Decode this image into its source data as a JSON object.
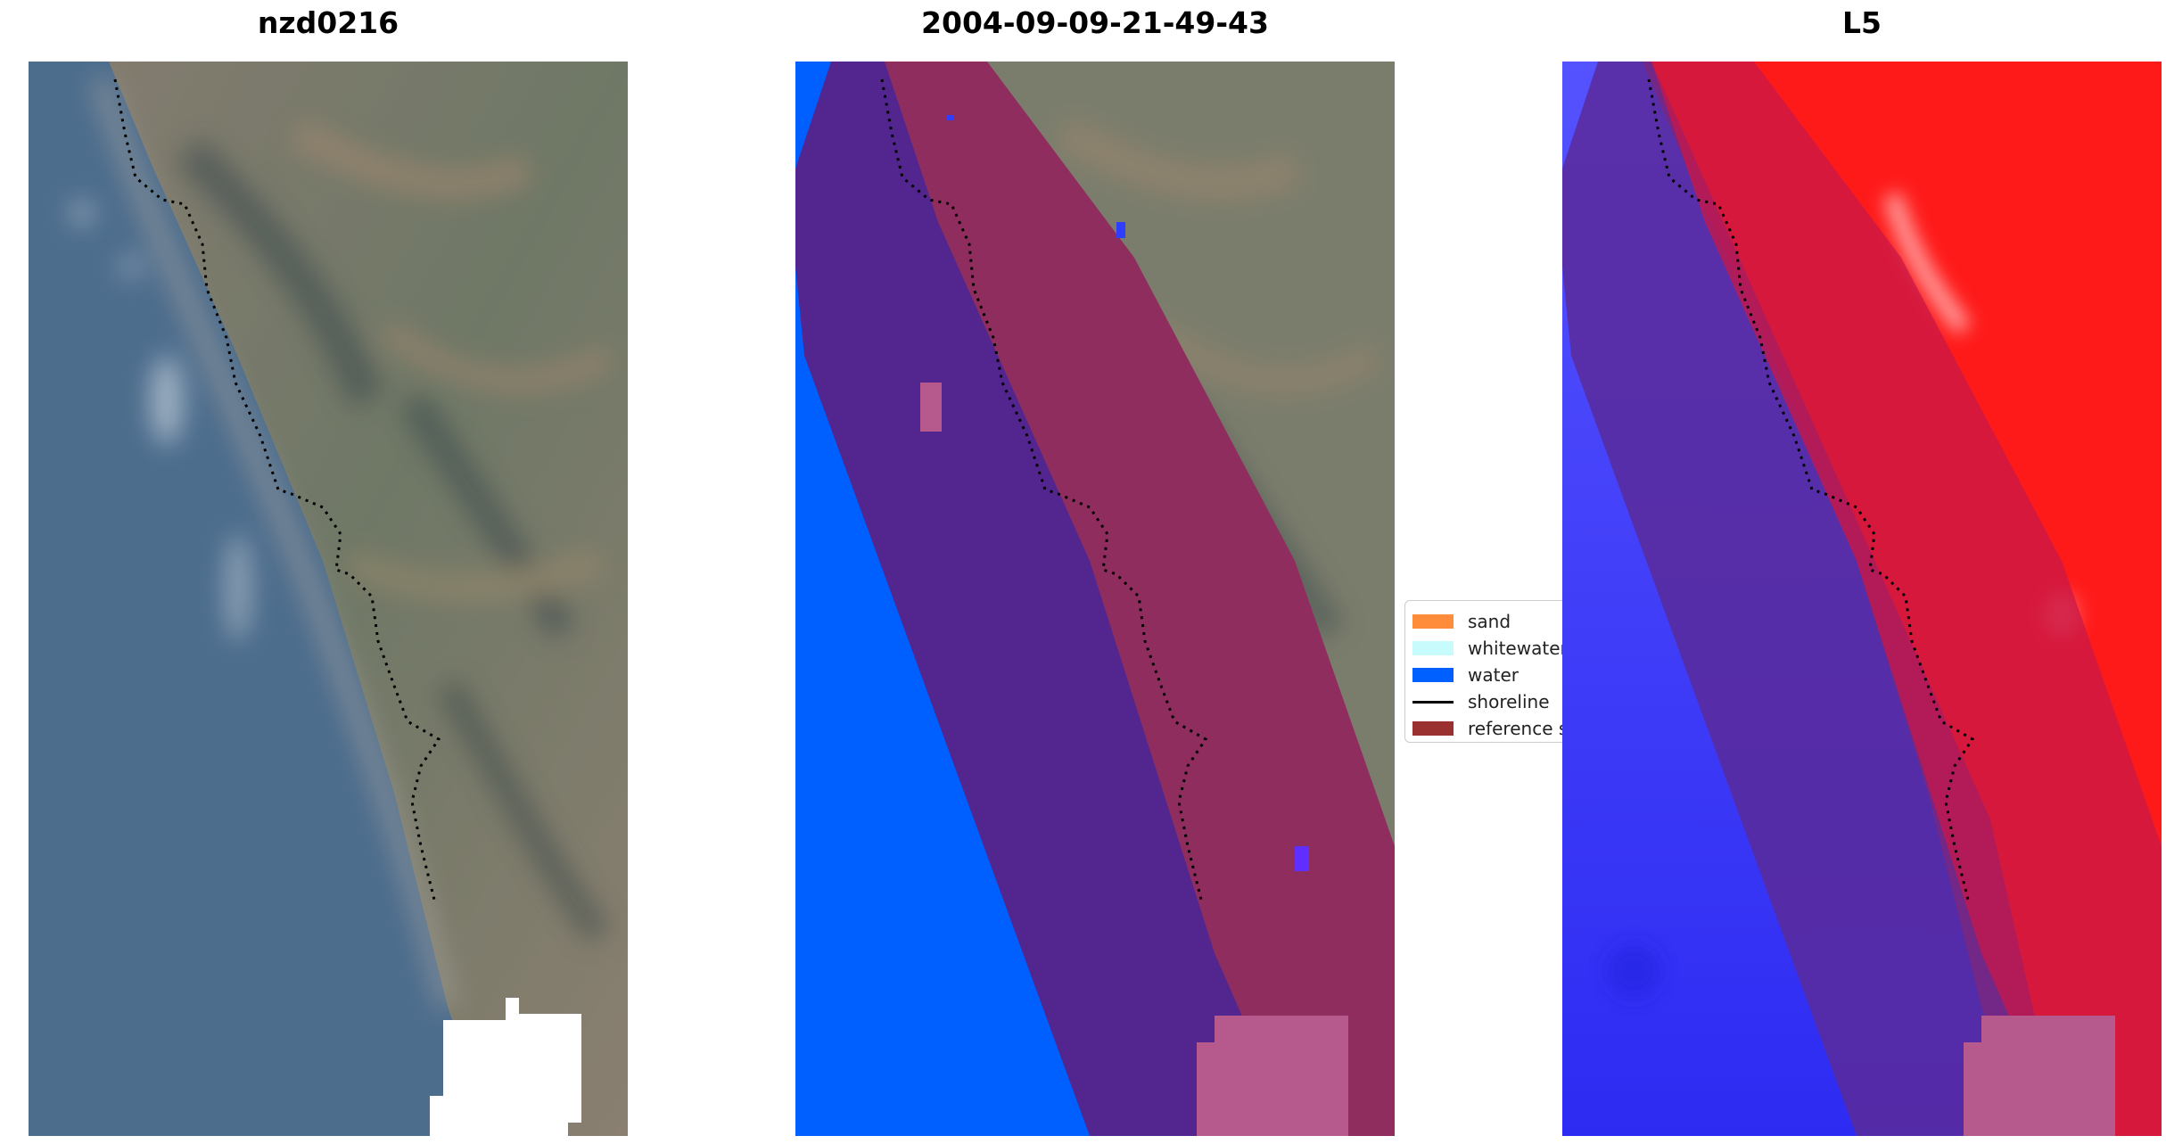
{
  "titles": {
    "site": "nzd0216",
    "date": "2004-09-09-21-49-43",
    "satellite": "L5"
  },
  "legend": {
    "items": [
      {
        "label": "sand",
        "color": "#ff8c3a",
        "kind": "patch"
      },
      {
        "label": "whitewater",
        "color": "#c8fbfb",
        "kind": "patch"
      },
      {
        "label": "water",
        "color": "#0060ff",
        "kind": "patch"
      },
      {
        "label": "shoreline",
        "color": "#000000",
        "kind": "line"
      },
      {
        "label": "reference s",
        "color": "#9b3030",
        "kind": "patch"
      }
    ]
  },
  "colors": {
    "ocean": "#4d6d8d",
    "land": "#7a7a6a",
    "water_class": "#0060ff",
    "buffer": "#53258f",
    "land_buffer": "#8e2d5e",
    "cloud_mask": "#ffffff",
    "nodata_mask": "#b65a8e",
    "index_blue": "#4f4cf5",
    "index_red": "#ff1a1a"
  }
}
